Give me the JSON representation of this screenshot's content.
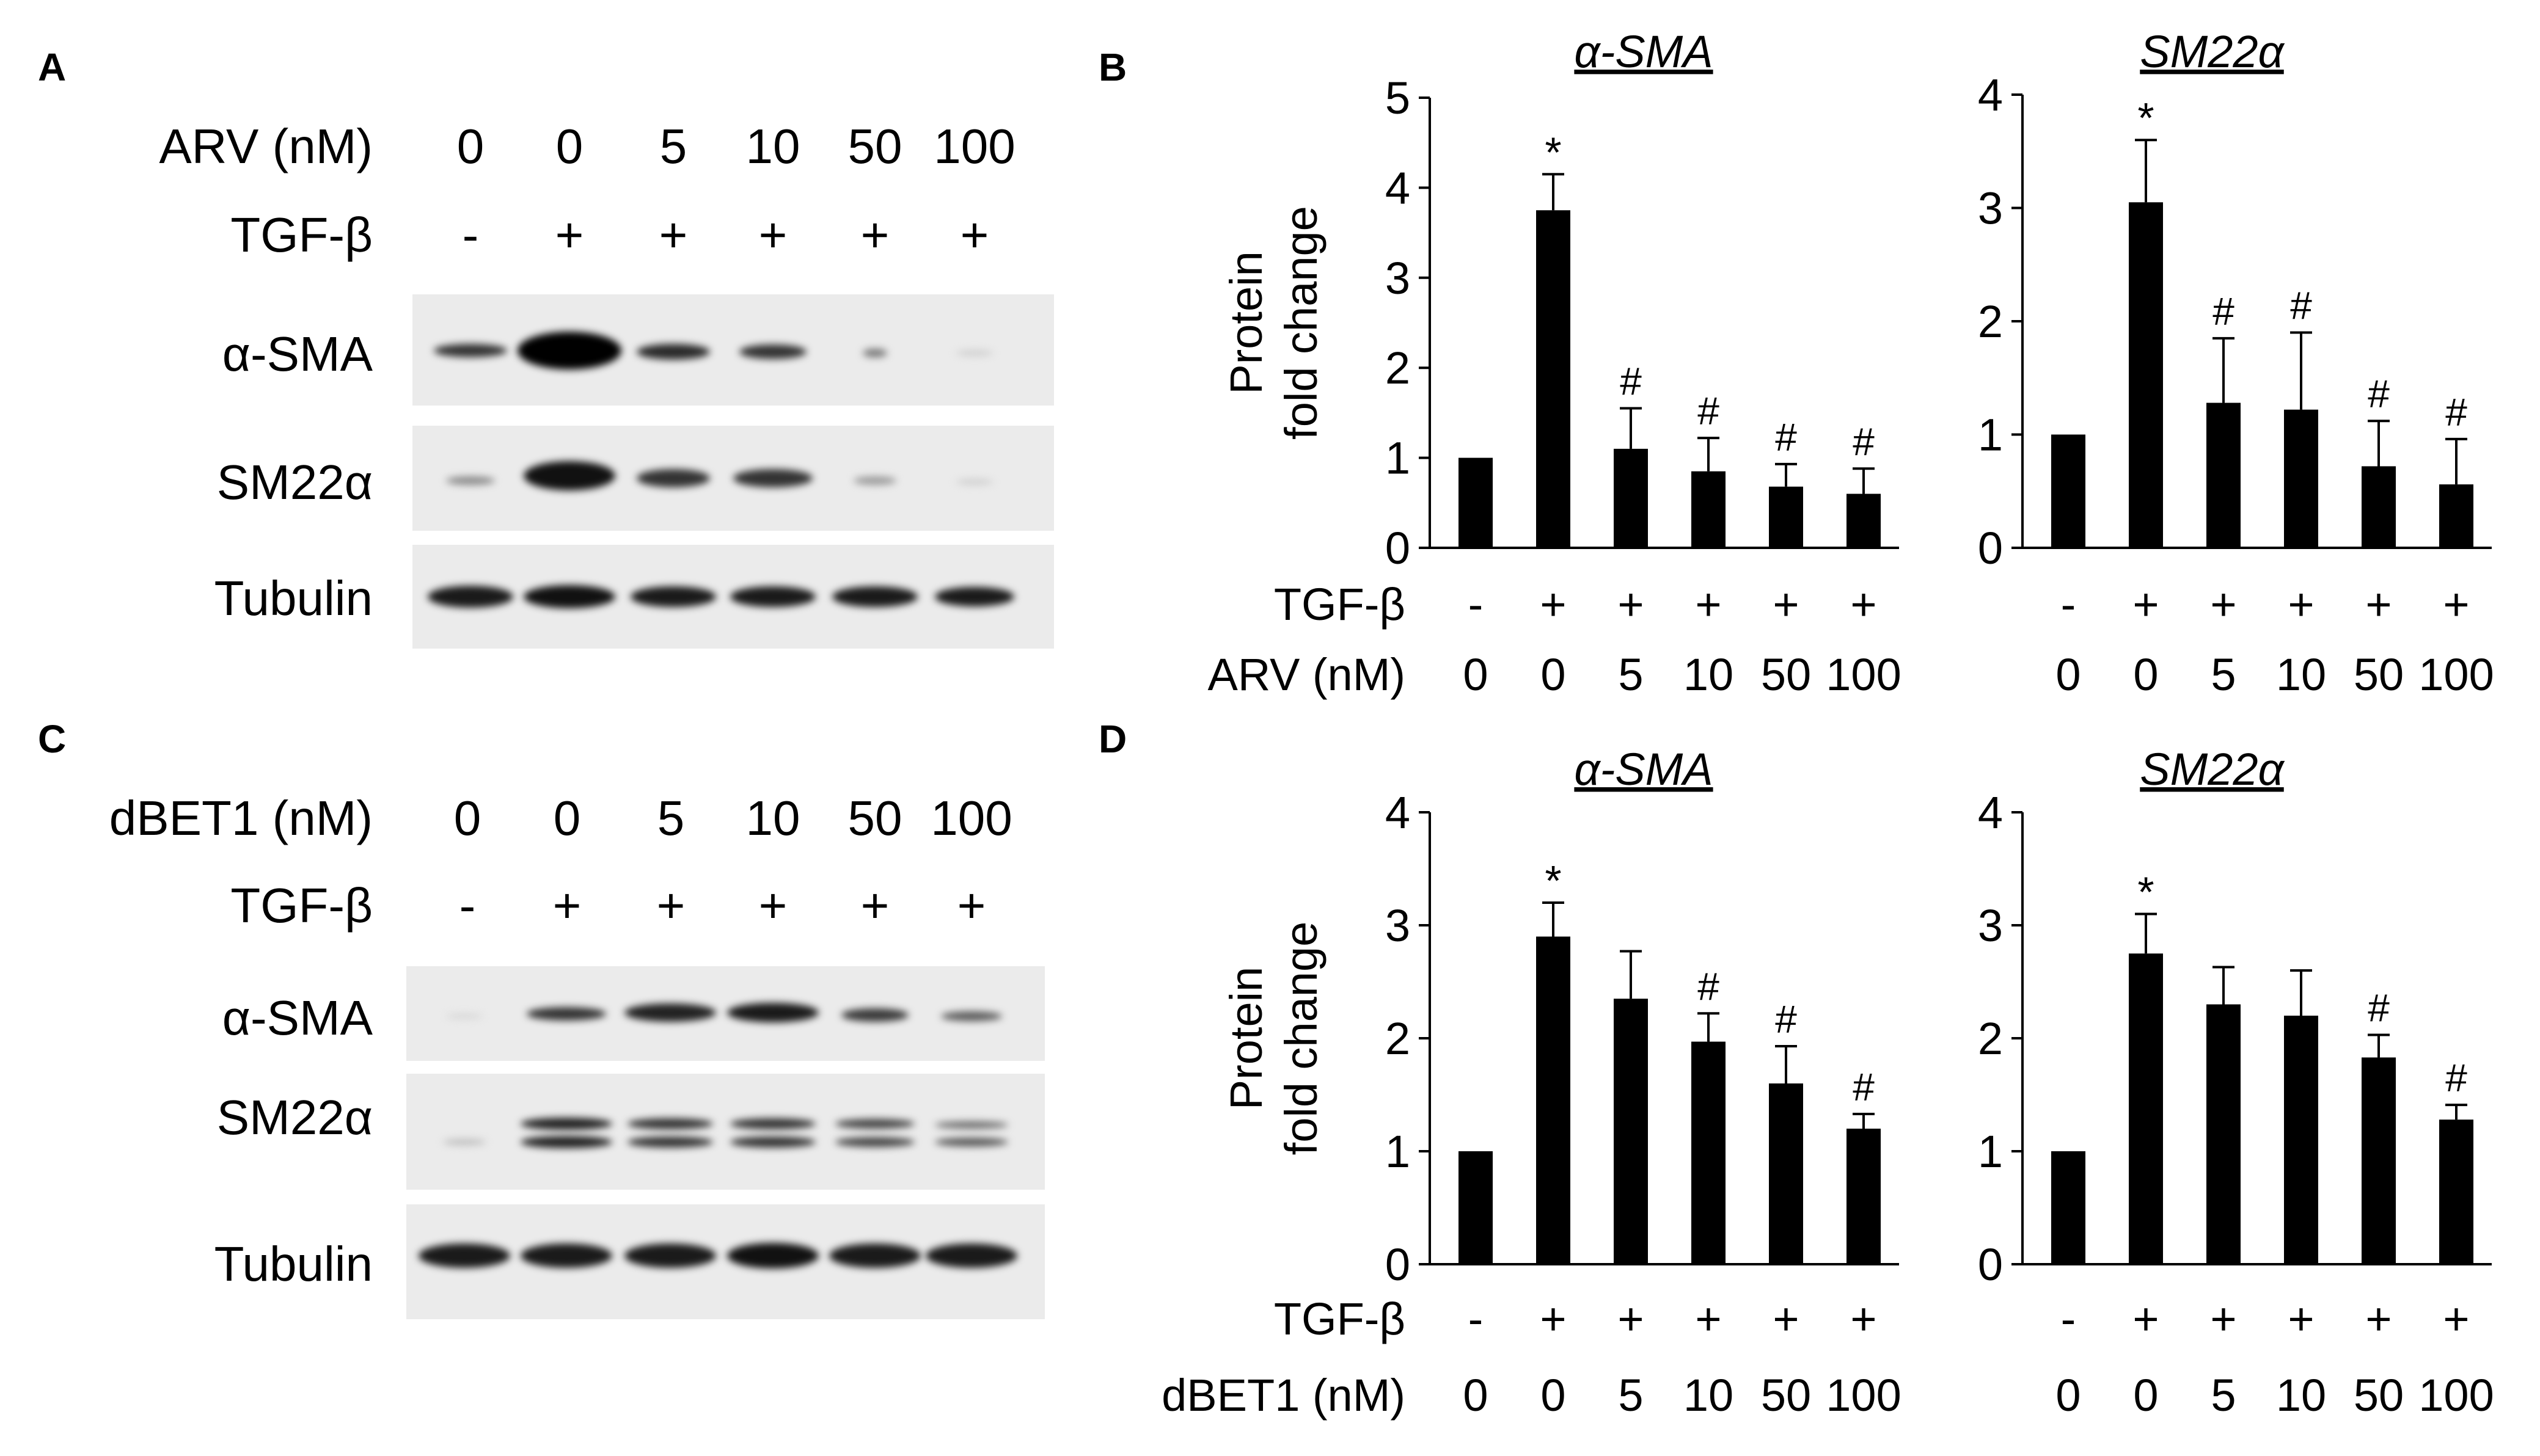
{
  "panel_labels": [
    "A",
    "B",
    "C",
    "D"
  ],
  "panelA": {
    "treatment_label": "ARV (nM)",
    "treatment_values": [
      "0",
      "0",
      "5",
      "10",
      "50",
      "100"
    ],
    "tgf_label": "TGF-β",
    "tgf_values": [
      "-",
      "+",
      "+",
      "+",
      "+",
      "+"
    ],
    "blot_labels": [
      "α-SMA",
      "SM22α",
      "Tubulin"
    ]
  },
  "panelC": {
    "treatment_label": "dBET1 (nM)",
    "treatment_values": [
      "0",
      "0",
      "5",
      "10",
      "50",
      "100"
    ],
    "tgf_label": "TGF-β",
    "tgf_values": [
      "-",
      "+",
      "+",
      "+",
      "+",
      "+"
    ],
    "blot_labels": [
      "α-SMA",
      "SM22α",
      "Tubulin"
    ]
  },
  "ylabel_line1": "Protein",
  "ylabel_line2": "fold change",
  "chart_data": [
    {
      "panel": "B",
      "type": "bar",
      "title": "α-SMA",
      "ylim": [
        0,
        5
      ],
      "yticks": [
        "0",
        "1",
        "2",
        "3",
        "4",
        "5"
      ],
      "x_row_labels": [
        "TGF-β",
        "ARV (nM)"
      ],
      "tgf": [
        "-",
        "+",
        "+",
        "+",
        "+",
        "+"
      ],
      "categories": [
        "0",
        "0",
        "5",
        "10",
        "50",
        "100"
      ],
      "values": [
        1.0,
        3.75,
        1.1,
        0.85,
        0.68,
        0.6
      ],
      "errors": [
        0,
        0.4,
        0.45,
        0.37,
        0.25,
        0.28
      ],
      "annotations": [
        "",
        "*",
        "#",
        "#",
        "#",
        "#"
      ]
    },
    {
      "panel": "B",
      "type": "bar",
      "title": "SM22α",
      "ylim": [
        0,
        4
      ],
      "yticks": [
        "0",
        "1",
        "2",
        "3",
        "4"
      ],
      "x_row_labels": [
        "",
        ""
      ],
      "tgf": [
        "-",
        "+",
        "+",
        "+",
        "+",
        "+"
      ],
      "categories": [
        "0",
        "0",
        "5",
        "10",
        "50",
        "100"
      ],
      "values": [
        1.0,
        3.05,
        1.28,
        1.22,
        0.72,
        0.56
      ],
      "errors": [
        0,
        0.55,
        0.57,
        0.68,
        0.4,
        0.4
      ],
      "annotations": [
        "",
        "*",
        "#",
        "#",
        "#",
        "#"
      ]
    },
    {
      "panel": "D",
      "type": "bar",
      "title": "α-SMA",
      "ylim": [
        0,
        4
      ],
      "yticks": [
        "0",
        "1",
        "2",
        "3",
        "4"
      ],
      "x_row_labels": [
        "TGF-β",
        "dBET1 (nM)"
      ],
      "tgf": [
        "-",
        "+",
        "+",
        "+",
        "+",
        "+"
      ],
      "categories": [
        "0",
        "0",
        "5",
        "10",
        "50",
        "100"
      ],
      "values": [
        1.0,
        2.9,
        2.35,
        1.97,
        1.6,
        1.2
      ],
      "errors": [
        0,
        0.3,
        0.42,
        0.25,
        0.33,
        0.13
      ],
      "annotations": [
        "",
        "*",
        "",
        "#",
        "#",
        "#"
      ]
    },
    {
      "panel": "D",
      "type": "bar",
      "title": "SM22α",
      "ylim": [
        0,
        4
      ],
      "yticks": [
        "0",
        "1",
        "2",
        "3",
        "4"
      ],
      "x_row_labels": [
        "",
        ""
      ],
      "tgf": [
        "-",
        "+",
        "+",
        "+",
        "+",
        "+"
      ],
      "categories": [
        "0",
        "0",
        "5",
        "10",
        "50",
        "100"
      ],
      "values": [
        1.0,
        2.75,
        2.3,
        2.2,
        1.83,
        1.28
      ],
      "errors": [
        0,
        0.35,
        0.33,
        0.4,
        0.2,
        0.13
      ],
      "annotations": [
        "",
        "*",
        "",
        "",
        "#",
        "#"
      ]
    }
  ]
}
